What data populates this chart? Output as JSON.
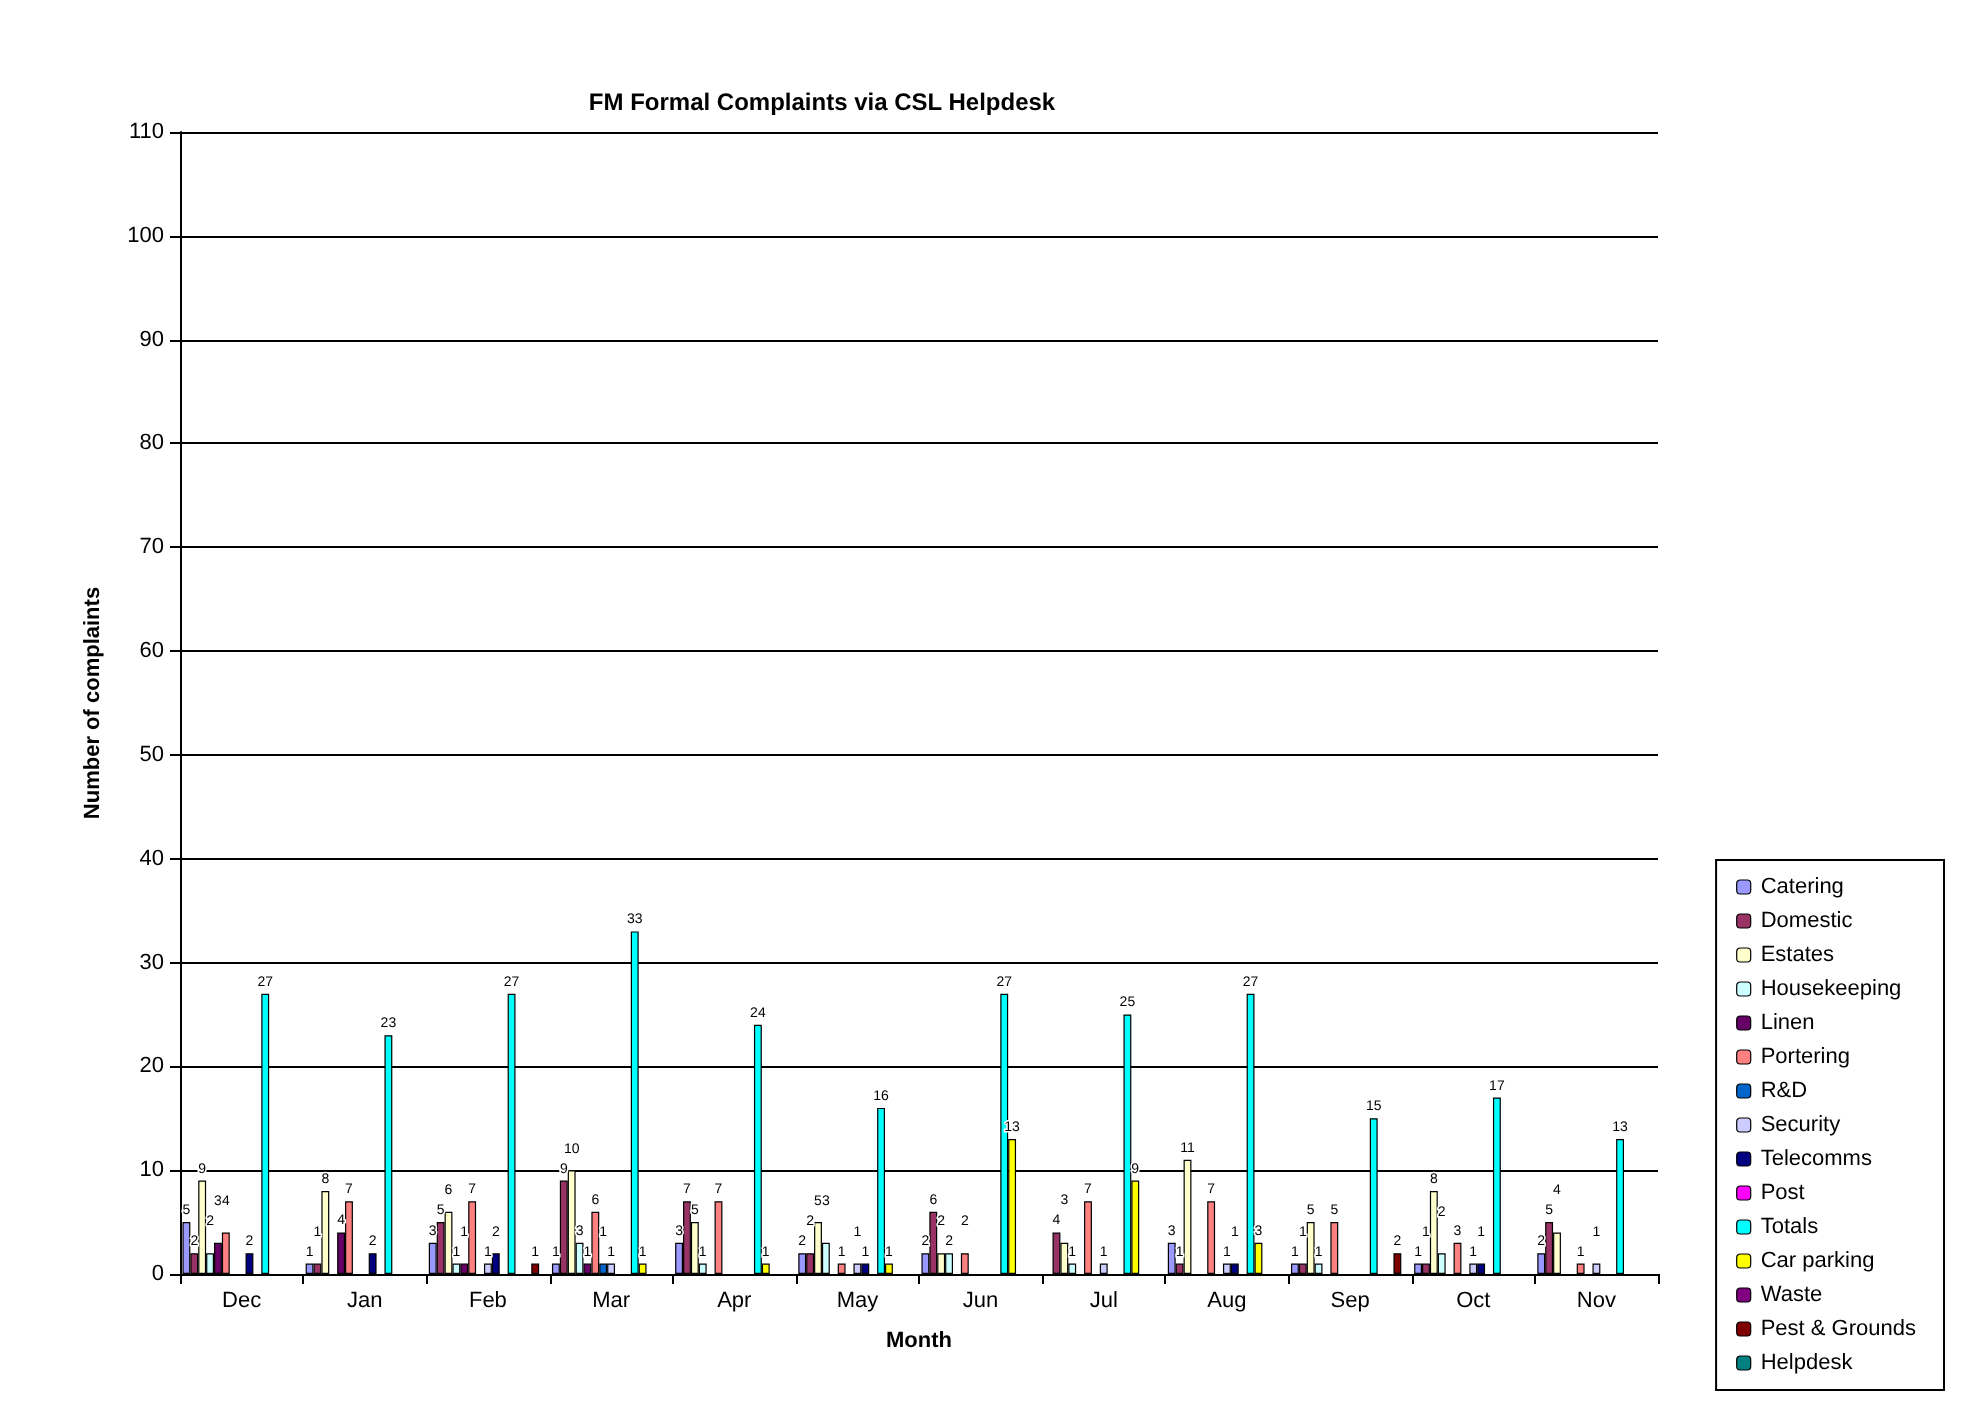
{
  "chart_data": {
    "type": "bar",
    "title": "FM Formal Complaints via CSL Helpdesk",
    "xlabel": "Month",
    "ylabel": "Number of complaints",
    "categories": [
      "Dec",
      "Jan",
      "Feb",
      "Mar",
      "Apr",
      "May",
      "Jun",
      "Jul",
      "Aug",
      "Sep",
      "Oct",
      "Nov"
    ],
    "series": [
      {
        "name": "Catering",
        "color": "#9999ff",
        "values": [
          5,
          1,
          3,
          1,
          3,
          2,
          2,
          null,
          3,
          1,
          1,
          2
        ]
      },
      {
        "name": "Domestic",
        "color": "#993366",
        "values": [
          2,
          1,
          5,
          9,
          7,
          2,
          6,
          4,
          1,
          1,
          1,
          5
        ]
      },
      {
        "name": "Estates",
        "color": "#ffffcc",
        "values": [
          9,
          8,
          6,
          10,
          5,
          5,
          2,
          3,
          11,
          5,
          8,
          4
        ]
      },
      {
        "name": "Housekeeping",
        "color": "#ccffff",
        "values": [
          2,
          null,
          1,
          3,
          1,
          3,
          2,
          1,
          null,
          1,
          2,
          null
        ]
      },
      {
        "name": "Linen",
        "color": "#660066",
        "values": [
          3,
          4,
          1,
          1,
          null,
          null,
          null,
          null,
          null,
          null,
          null,
          null
        ]
      },
      {
        "name": "Portering",
        "color": "#ff8080",
        "values": [
          4,
          7,
          7,
          6,
          7,
          1,
          2,
          7,
          7,
          5,
          3,
          1
        ]
      },
      {
        "name": "R&D",
        "color": "#0066cc",
        "values": [
          null,
          null,
          null,
          1,
          null,
          null,
          null,
          null,
          null,
          null,
          null,
          null
        ]
      },
      {
        "name": "Security",
        "color": "#ccccff",
        "values": [
          null,
          null,
          1,
          1,
          null,
          1,
          null,
          1,
          1,
          null,
          1,
          1
        ]
      },
      {
        "name": "Telecomms",
        "color": "#000080",
        "values": [
          2,
          2,
          2,
          null,
          null,
          1,
          null,
          null,
          1,
          null,
          1,
          null
        ]
      },
      {
        "name": "Post",
        "color": "#ff00ff",
        "values": [
          null,
          null,
          null,
          null,
          null,
          null,
          null,
          null,
          null,
          null,
          null,
          null
        ]
      },
      {
        "name": "Totals",
        "color": "#00ffff",
        "values": [
          27,
          23,
          27,
          33,
          24,
          16,
          27,
          25,
          27,
          15,
          17,
          13
        ]
      },
      {
        "name": "Car parking",
        "color": "#ffff00",
        "values": [
          null,
          null,
          null,
          1,
          1,
          1,
          13,
          9,
          3,
          null,
          null,
          null
        ]
      },
      {
        "name": "Waste",
        "color": "#800080",
        "values": [
          null,
          null,
          null,
          null,
          null,
          null,
          null,
          null,
          null,
          null,
          null,
          null
        ]
      },
      {
        "name": "Pest & Grounds",
        "color": "#800000",
        "values": [
          null,
          null,
          1,
          null,
          null,
          null,
          null,
          null,
          null,
          2,
          null,
          null
        ]
      },
      {
        "name": "Helpdesk",
        "color": "#008080",
        "values": [
          null,
          null,
          null,
          null,
          null,
          null,
          null,
          null,
          null,
          null,
          null,
          null
        ]
      }
    ],
    "ylim": [
      0,
      110
    ],
    "yticks": [
      0,
      10,
      20,
      30,
      40,
      50,
      60,
      70,
      80,
      90,
      100,
      110
    ],
    "grid": "y",
    "legend": "right",
    "data_labels": true
  }
}
